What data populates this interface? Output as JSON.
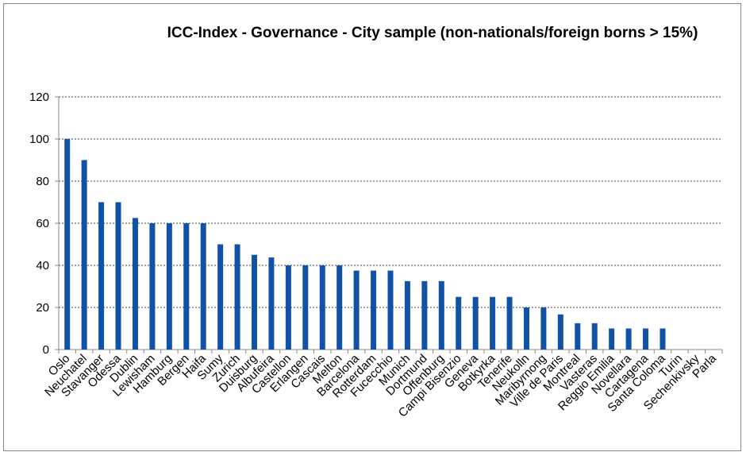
{
  "chart_data": {
    "type": "bar",
    "title": "ICC-Index - Governance -  City sample (non-nationals/foreign borns > 15%)",
    "categories": [
      "Oslo",
      "Neuchatel",
      "Stavanger",
      "Odessa",
      "Dublin",
      "Lewisham",
      "Hamburg",
      "Bergen",
      "Haifa",
      "Sumy",
      "Zurich",
      "Duisburg",
      "Albufeira",
      "Castellon",
      "Erlangen",
      "Cascais",
      "Melton",
      "Barcelona",
      "Rotterdam",
      "Fucecchio",
      "Munich",
      "Dortmund",
      "Offenburg",
      "Campi Bisenzio",
      "Geneva",
      "Botkyrka",
      "Tenerife",
      "Neukolln",
      "Maribyrnong",
      "Ville de Paris",
      "Montreal",
      "Vasteras",
      "Reggio Emilia",
      "Novellara",
      "Cartagena",
      "Santa Coloma",
      "Turin",
      "Sechenkivsky",
      "Parla"
    ],
    "values": [
      100,
      90,
      70,
      70,
      62.5,
      60,
      60,
      60,
      60,
      50,
      50,
      45,
      43.75,
      40,
      40,
      40,
      40,
      37.5,
      37.5,
      37.5,
      32.5,
      32.5,
      32.5,
      25,
      25,
      25,
      25,
      20,
      20,
      16.7,
      12.5,
      12.5,
      10,
      10,
      10,
      10,
      0,
      0,
      0
    ],
    "color": "#0f52a8",
    "ylim": [
      0,
      120
    ],
    "yticks": [
      0,
      20,
      40,
      60,
      80,
      100,
      120
    ],
    "grid": true
  }
}
